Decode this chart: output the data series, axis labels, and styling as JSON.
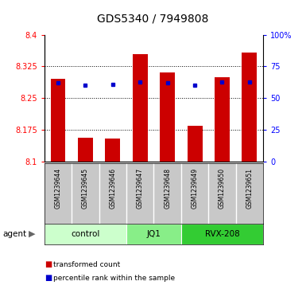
{
  "title": "GDS5340 / 7949808",
  "samples": [
    "GSM1239644",
    "GSM1239645",
    "GSM1239646",
    "GSM1239647",
    "GSM1239648",
    "GSM1239649",
    "GSM1239650",
    "GSM1239651"
  ],
  "bar_values": [
    8.295,
    8.157,
    8.155,
    8.355,
    8.31,
    8.185,
    8.3,
    8.357
  ],
  "percentile_values": [
    62,
    60,
    61,
    63,
    62,
    60,
    63,
    63
  ],
  "bar_bottom": 8.1,
  "ylim_left": [
    8.1,
    8.4
  ],
  "ylim_right": [
    0,
    100
  ],
  "yticks_left": [
    8.1,
    8.175,
    8.25,
    8.325,
    8.4
  ],
  "yticks_right": [
    0,
    25,
    50,
    75,
    100
  ],
  "ytick_labels_left": [
    "8.1",
    "8.175",
    "8.25",
    "8.325",
    "8.4"
  ],
  "ytick_labels_right": [
    "0",
    "25",
    "50",
    "75",
    "100%"
  ],
  "bar_color": "#cc0000",
  "percentile_color": "#0000cc",
  "groups": [
    {
      "label": "control",
      "start": 0,
      "end": 3,
      "color": "#ccffcc"
    },
    {
      "label": "JQ1",
      "start": 3,
      "end": 5,
      "color": "#88ee88"
    },
    {
      "label": "RVX-208",
      "start": 5,
      "end": 8,
      "color": "#33cc33"
    }
  ],
  "group_row_color": "#c8c8c8",
  "agent_label": "agent",
  "legend_items": [
    {
      "label": "transformed count",
      "color": "#cc0000"
    },
    {
      "label": "percentile rank within the sample",
      "color": "#0000cc"
    }
  ],
  "background_color": "#ffffff",
  "grid_color": "#000000",
  "title_fontsize": 10,
  "tick_fontsize": 7,
  "bar_width": 0.55
}
